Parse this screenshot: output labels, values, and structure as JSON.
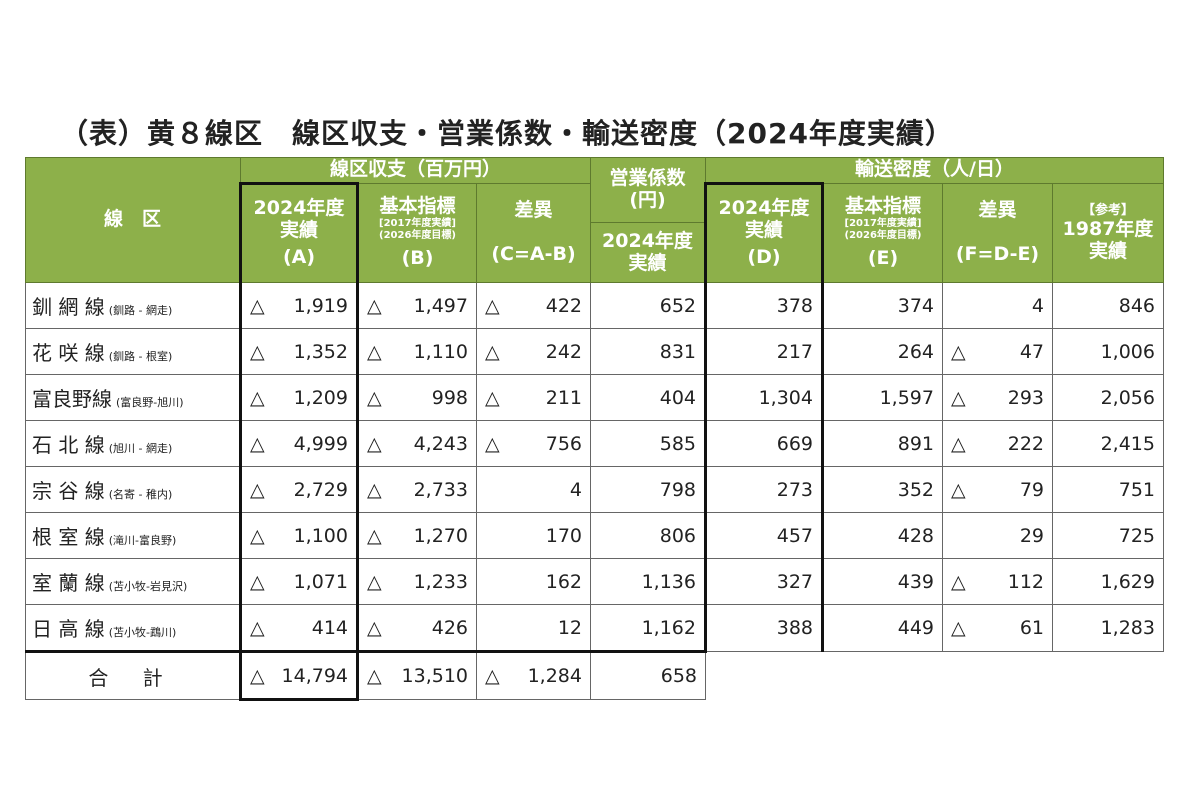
{
  "title": "（表）黄８線区　線区収支・営業係数・輸送密度（2024年度実績）",
  "headers": {
    "line": "線　区",
    "balance": "線区収支（百万円）",
    "op_coef": "営業係数",
    "op_coef_unit": "(円)",
    "density": "輸送密度（人/日）",
    "actual_2024": "2024年度",
    "actual_word": "実績",
    "basic": "基本指標",
    "basic_sub1": "[2017年度実績]",
    "basic_sub2": "(2026年度目標)",
    "diff": "差異",
    "A": "(A)",
    "B": "(B)",
    "C": "(C=A-B)",
    "D": "(D)",
    "E": "(E)",
    "F": "(F=D-E)",
    "ref": "【参考】",
    "ref_year": "1987年度",
    "ref_actual": "実績"
  },
  "rows": [
    {
      "name": "釧 網 線",
      "section": "(釧路 - 網走)",
      "cells": [
        "△ 1,919",
        "△ 1,497",
        "△ 422",
        "652",
        "378",
        "374",
        "4",
        "846"
      ]
    },
    {
      "name": "花 咲 線",
      "section": "(釧路 - 根室)",
      "cells": [
        "△ 1,352",
        "△ 1,110",
        "△ 242",
        "831",
        "217",
        "264",
        "△ 47",
        "1,006"
      ]
    },
    {
      "name": "富良野線",
      "section": "(富良野-旭川)",
      "cells": [
        "△ 1,209",
        "△ 998",
        "△ 211",
        "404",
        "1,304",
        "1,597",
        "△ 293",
        "2,056"
      ]
    },
    {
      "name": "石 北 線",
      "section": "(旭川 - 網走)",
      "cells": [
        "△ 4,999",
        "△ 4,243",
        "△ 756",
        "585",
        "669",
        "891",
        "△ 222",
        "2,415"
      ]
    },
    {
      "name": "宗 谷 線",
      "section": "(名寄 - 稚内)",
      "cells": [
        "△ 2,729",
        "△ 2,733",
        "4",
        "798",
        "273",
        "352",
        "△ 79",
        "751"
      ]
    },
    {
      "name": "根 室 線",
      "section": "(滝川-富良野)",
      "cells": [
        "△ 1,100",
        "△ 1,270",
        "170",
        "806",
        "457",
        "428",
        "29",
        "725"
      ]
    },
    {
      "name": "室 蘭 線",
      "section": "(苫小牧-岩見沢)",
      "cells": [
        "△ 1,071",
        "△ 1,233",
        "162",
        "1,136",
        "327",
        "439",
        "△ 112",
        "1,629"
      ]
    },
    {
      "name": "日 高 線",
      "section": "(苫小牧-鵡川)",
      "cells": [
        "△ 414",
        "△ 426",
        "12",
        "1,162",
        "388",
        "449",
        "△ 61",
        "1,283"
      ]
    }
  ],
  "total": {
    "label": "合 計",
    "cells": [
      "△ 14,794",
      "△ 13,510",
      "△ 1,284",
      "658"
    ]
  },
  "colors": {
    "header": "#8db04a"
  }
}
